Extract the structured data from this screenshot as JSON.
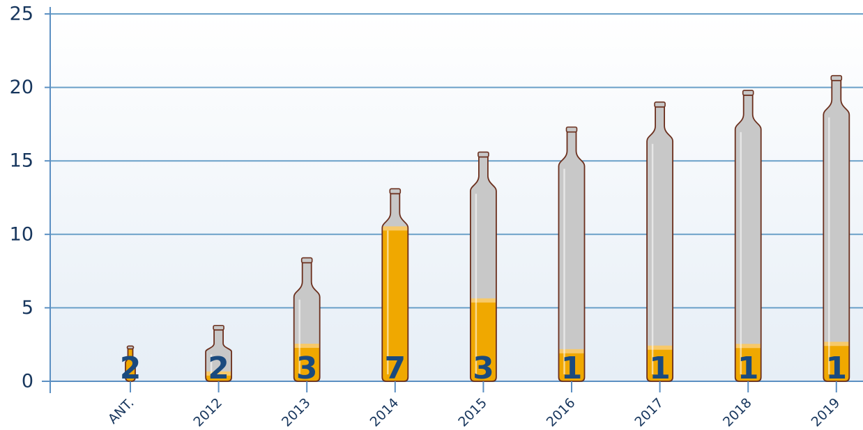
{
  "chart_data": {
    "type": "bar",
    "title": "",
    "xlabel": "",
    "ylabel": "",
    "categories": [
      "ANT.",
      "2012",
      "2013",
      "2014",
      "2015",
      "2016",
      "2017",
      "2018",
      "2019"
    ],
    "series": [
      {
        "values": [
          2.4,
          3.8,
          8.4,
          13.1,
          15.6,
          17.3,
          19.0,
          19.8,
          20.8
        ]
      },
      {
        "values": [
          2,
          2,
          3,
          7,
          3,
          1,
          1,
          1,
          1
        ]
      }
    ],
    "ylim": [
      0,
      25
    ],
    "yticks": [
      0,
      5,
      10,
      15,
      20,
      25
    ],
    "grid": true,
    "colors": {
      "bottle": "#c8c8c8",
      "beer": "#f0a800",
      "outline": "#6b2f1d",
      "grid": "#6aa0c8",
      "axis": "#5b8fc2",
      "text": "#17365d",
      "label": "#1a4a7e",
      "background_top": "#ffffff",
      "background_bottom": "#e6eef6"
    }
  }
}
